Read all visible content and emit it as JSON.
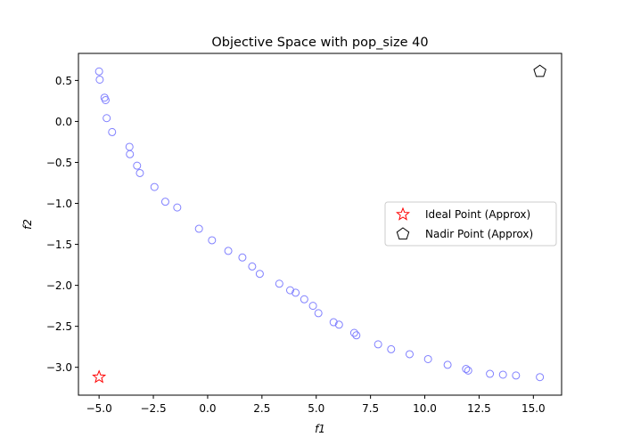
{
  "chart_data": {
    "type": "scatter",
    "title": "Objective Space with pop_size 40",
    "xlabel": "f1",
    "ylabel": "f2",
    "xlim": [
      -5.95,
      16.3
    ],
    "ylim": [
      -3.34,
      0.83
    ],
    "xticks": [
      -5.0,
      -2.5,
      0.0,
      2.5,
      5.0,
      7.5,
      10.0,
      12.5,
      15.0
    ],
    "xtick_labels": [
      "−5.0",
      "−2.5",
      "0.0",
      "2.5",
      "5.0",
      "7.5",
      "10.0",
      "12.5",
      "15.0"
    ],
    "yticks": [
      0.5,
      0.0,
      -0.5,
      -1.0,
      -1.5,
      -2.0,
      -2.5,
      -3.0
    ],
    "ytick_labels": [
      "0.5",
      "0.0",
      "−0.5",
      "−1.0",
      "−1.5",
      "−2.0",
      "−2.5",
      "−3.0"
    ],
    "grid": false,
    "legend_position": "center-right",
    "population": {
      "color": "#8080ff",
      "marker": "open-circle",
      "x": [
        -5.0,
        -4.97,
        -4.75,
        -4.7,
        -4.65,
        -4.4,
        -3.6,
        -3.58,
        -3.25,
        -3.12,
        -2.45,
        -1.95,
        -1.4,
        -0.4,
        0.2,
        0.95,
        1.6,
        2.05,
        2.4,
        3.3,
        3.8,
        4.05,
        4.45,
        4.85,
        5.1,
        5.8,
        6.05,
        6.75,
        6.85,
        7.85,
        8.45,
        9.3,
        10.15,
        11.05,
        11.9,
        12.0,
        13.0,
        13.6,
        14.2,
        15.3
      ],
      "y": [
        0.61,
        0.51,
        0.29,
        0.26,
        0.04,
        -0.13,
        -0.31,
        -0.4,
        -0.54,
        -0.63,
        -0.8,
        -0.98,
        -1.05,
        -1.31,
        -1.45,
        -1.58,
        -1.66,
        -1.77,
        -1.86,
        -1.98,
        -2.06,
        -2.09,
        -2.17,
        -2.25,
        -2.34,
        -2.45,
        -2.48,
        -2.58,
        -2.61,
        -2.72,
        -2.78,
        -2.84,
        -2.9,
        -2.97,
        -3.02,
        -3.04,
        -3.08,
        -3.09,
        -3.1,
        -3.12
      ]
    },
    "ideal_point": {
      "name": "Ideal Point (Approx)",
      "x": -5.0,
      "y": -3.12,
      "color": "#ff0000",
      "marker": "open-star"
    },
    "nadir_point": {
      "name": "Nadir Point (Approx)",
      "x": 15.3,
      "y": 0.61,
      "color": "#000000",
      "marker": "open-pentagon"
    }
  }
}
